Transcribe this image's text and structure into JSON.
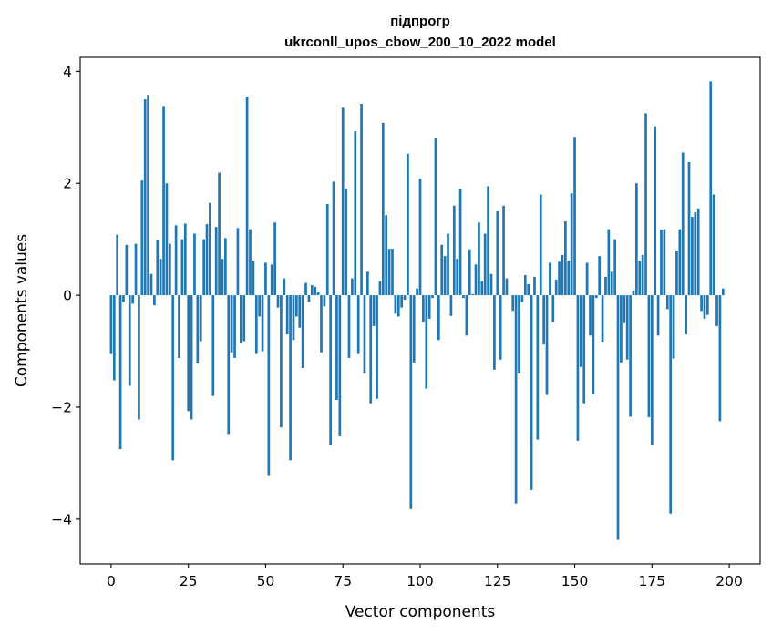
{
  "chart_data": {
    "type": "bar",
    "title": "підпрогр",
    "subtitle": "ukrconll_upos_cbow_200_10_2022 model",
    "xlabel": "Vector components",
    "ylabel": "Components values",
    "xlim": [
      -10,
      210
    ],
    "ylim": [
      -4.8,
      4.25
    ],
    "xticks": [
      0,
      25,
      50,
      75,
      100,
      125,
      150,
      175,
      200
    ],
    "yticks": [
      -4,
      -2,
      0,
      2,
      4
    ],
    "ytick_labels": [
      "−4",
      "−2",
      "0",
      "2",
      "4"
    ],
    "grid": false,
    "bar_color": "#1f77b4",
    "values": [
      -1.05,
      -1.52,
      1.08,
      -2.75,
      -0.12,
      0.9,
      -1.62,
      -0.15,
      0.92,
      -2.22,
      2.05,
      3.5,
      3.58,
      0.38,
      -0.18,
      0.98,
      0.65,
      3.38,
      2.0,
      0.92,
      -2.95,
      1.25,
      -1.12,
      1.0,
      1.28,
      -2.07,
      -2.22,
      1.1,
      -1.22,
      -0.82,
      1.0,
      1.27,
      1.65,
      -1.8,
      1.22,
      2.19,
      0.65,
      1.02,
      -2.48,
      -1.02,
      -1.12,
      1.2,
      -0.85,
      -0.82,
      3.55,
      1.18,
      0.62,
      -1.05,
      -0.38,
      -1.0,
      0.58,
      -3.23,
      0.55,
      1.3,
      -0.22,
      -2.36,
      0.3,
      -0.7,
      -2.95,
      -0.8,
      -0.38,
      -0.58,
      -1.3,
      0.22,
      -0.12,
      0.18,
      0.15,
      0.05,
      -1.02,
      -0.2,
      1.63,
      -2.67,
      2.03,
      -1.87,
      -2.52,
      3.35,
      1.9,
      -1.12,
      0.3,
      2.93,
      -1.05,
      3.42,
      -1.4,
      0.42,
      -1.93,
      -0.55,
      -1.85,
      0.25,
      3.08,
      1.43,
      0.83,
      0.83,
      -0.33,
      -0.38,
      -0.22,
      -0.08,
      2.53,
      -3.82,
      -1.2,
      0.12,
      2.08,
      -0.48,
      -1.67,
      -0.42,
      -0.05,
      2.8,
      -0.8,
      0.9,
      0.7,
      1.1,
      -0.37,
      1.6,
      0.65,
      1.9,
      -0.05,
      -0.72,
      0.82,
      0.02,
      0.55,
      1.3,
      0.25,
      1.1,
      1.95,
      0.38,
      -1.33,
      1.5,
      -1.15,
      1.6,
      0.3,
      0.0,
      -0.28,
      -3.72,
      -1.4,
      -0.12,
      0.36,
      0.2,
      -3.48,
      0.33,
      -2.58,
      1.8,
      -0.88,
      -1.78,
      0.58,
      -0.48,
      0.28,
      0.6,
      0.72,
      1.32,
      0.62,
      1.82,
      2.83,
      -2.6,
      -1.28,
      -1.93,
      0.58,
      -0.72,
      -1.77,
      -0.05,
      0.7,
      -0.83,
      0.33,
      1.18,
      0.42,
      1.0,
      -4.37,
      -1.2,
      -0.5,
      -1.15,
      -2.17,
      0.08,
      2.0,
      0.62,
      0.72,
      3.25,
      -2.18,
      -2.67,
      3.02,
      -0.72,
      1.17,
      1.18,
      -0.25,
      -3.9,
      -1.13,
      0.8,
      1.18,
      2.55,
      -0.7,
      2.38,
      1.4,
      1.48,
      1.55,
      -0.28,
      -0.42,
      -0.35,
      3.82,
      1.8,
      -0.55,
      -2.25,
      0.12
    ]
  }
}
